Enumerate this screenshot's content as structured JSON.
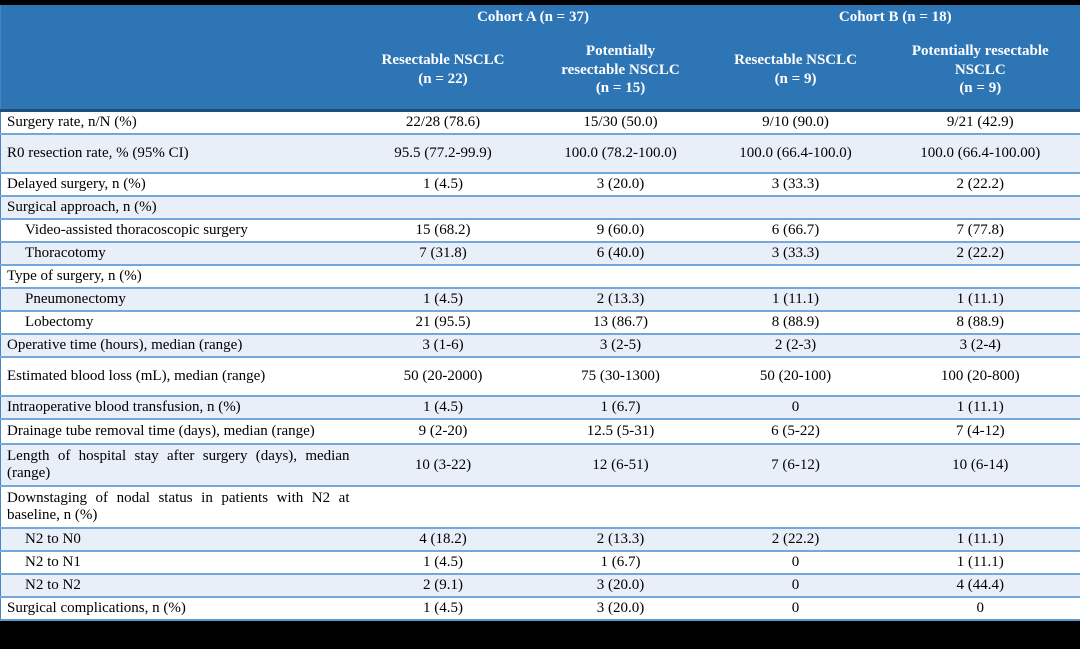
{
  "colors": {
    "header_bg": "#2E75B6",
    "header_text": "#FFFFFF",
    "row_alt_bg": "#E9EFF8",
    "row_border": "#74A7DA",
    "header_divider": "#1F4E79",
    "body_text": "#000000"
  },
  "table": {
    "header": {
      "cohort_a": "Cohort A (n = 37)",
      "cohort_b": "Cohort B (n = 18)",
      "columns": [
        "Resectable NSCLC\n(n = 22)",
        "Potentially\nresectable NSCLC\n(n = 15)",
        "Resectable NSCLC\n(n = 9)",
        "Potentially resectable\nNSCLC\n(n = 9)"
      ]
    },
    "rows": [
      {
        "label": "Surgery rate, n/N (%)",
        "indent": false,
        "values": [
          "22/28 (78.6)",
          "15/30 (50.0)",
          "9/10 (90.0)",
          "9/21 (42.9)"
        ]
      },
      {
        "label": "R0 resection rate, % (95% CI)",
        "indent": false,
        "values": [
          "95.5 (77.2-99.9)",
          "100.0 (78.2-100.0)",
          "100.0 (66.4-100.0)",
          "100.0 (66.4-100.00)"
        ]
      },
      {
        "label": "Delayed surgery, n (%)",
        "indent": false,
        "values": [
          "1 (4.5)",
          "3 (20.0)",
          "3 (33.3)",
          "2 (22.2)"
        ]
      },
      {
        "label": "Surgical approach, n (%)",
        "indent": false,
        "values": [
          "",
          "",
          "",
          ""
        ]
      },
      {
        "label": "Video-assisted thoracoscopic surgery",
        "indent": true,
        "values": [
          "15 (68.2)",
          "9 (60.0)",
          "6 (66.7)",
          "7 (77.8)"
        ]
      },
      {
        "label": "Thoracotomy",
        "indent": true,
        "values": [
          "7 (31.8)",
          "6 (40.0)",
          "3 (33.3)",
          "2 (22.2)"
        ]
      },
      {
        "label": "Type of surgery, n (%)",
        "indent": false,
        "values": [
          "",
          "",
          "",
          ""
        ]
      },
      {
        "label": "Pneumonectomy",
        "indent": true,
        "values": [
          "1 (4.5)",
          "2 (13.3)",
          "1 (11.1)",
          "1 (11.1)"
        ]
      },
      {
        "label": "Lobectomy",
        "indent": true,
        "values": [
          "21 (95.5)",
          "13 (86.7)",
          "8 (88.9)",
          "8 (88.9)"
        ]
      },
      {
        "label": "Operative time (hours), median (range)",
        "indent": false,
        "values": [
          "3 (1-6)",
          "3 (2-5)",
          "2 (2-3)",
          "3 (2-4)"
        ]
      },
      {
        "label": "Estimated blood loss (mL), median (range)",
        "indent": false,
        "values": [
          "50 (20-2000)",
          "75 (30-1300)",
          "50 (20-100)",
          "100 (20-800)"
        ]
      },
      {
        "label": "Intraoperative blood transfusion, n (%)",
        "indent": false,
        "values": [
          "1 (4.5)",
          "1 (6.7)",
          "0",
          "1 (11.1)"
        ]
      },
      {
        "label": "Drainage tube removal time (days), median (range)",
        "indent": false,
        "values": [
          "9 (2-20)",
          "12.5 (5-31)",
          "6 (5-22)",
          "7 (4-12)"
        ]
      },
      {
        "label": "Length of hospital stay after surgery (days), median (range)",
        "indent": false,
        "values": [
          "10 (3-22)",
          "12 (6-51)",
          "7 (6-12)",
          "10 (6-14)"
        ]
      },
      {
        "label": "Downstaging of nodal status in patients with N2 at baseline, n (%)",
        "indent": false,
        "values": [
          "",
          "",
          "",
          ""
        ]
      },
      {
        "label": "N2 to N0",
        "indent": true,
        "values": [
          "4 (18.2)",
          "2 (13.3)",
          "2 (22.2)",
          "1 (11.1)"
        ]
      },
      {
        "label": "N2 to N1",
        "indent": true,
        "values": [
          "1 (4.5)",
          "1 (6.7)",
          "0",
          "1 (11.1)"
        ]
      },
      {
        "label": "N2 to N2",
        "indent": true,
        "values": [
          "2 (9.1)",
          "3 (20.0)",
          "0",
          "4 (44.4)"
        ]
      },
      {
        "label": "Surgical complications, n (%)",
        "indent": false,
        "values": [
          "1 (4.5)",
          "3 (20.0)",
          "0",
          "0"
        ]
      }
    ]
  }
}
